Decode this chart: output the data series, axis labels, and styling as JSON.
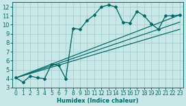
{
  "xlabel": "Humidex (Indice chaleur)",
  "xlim": [
    -0.5,
    23.5
  ],
  "ylim": [
    3,
    12.5
  ],
  "xticks": [
    0,
    1,
    2,
    3,
    4,
    5,
    6,
    7,
    8,
    9,
    10,
    11,
    12,
    13,
    14,
    15,
    16,
    17,
    18,
    19,
    20,
    21,
    22,
    23
  ],
  "yticks": [
    3,
    4,
    5,
    6,
    7,
    8,
    9,
    10,
    11,
    12
  ],
  "background_color": "#c8e8e8",
  "grid_color": "#a8cccc",
  "line_color": "#006868",
  "series_dotted": {
    "x": [
      0,
      1,
      2,
      3,
      4,
      5,
      6,
      7,
      8,
      9,
      10,
      11,
      12,
      13,
      14,
      15,
      16,
      17,
      18,
      19,
      20,
      21,
      22,
      23
    ],
    "y": [
      4.1,
      3.6,
      4.3,
      4.1,
      4.0,
      5.6,
      5.5,
      4.0,
      9.6,
      9.5,
      10.5,
      11.1,
      12.0,
      12.2,
      12.0,
      10.3,
      10.2,
      11.5,
      11.0,
      10.1,
      9.5,
      11.0,
      11.0,
      11.1
    ]
  },
  "series_solid1": {
    "x": [
      0,
      1,
      2,
      3,
      4,
      5,
      6,
      7,
      8,
      9,
      10,
      11,
      12,
      13,
      14,
      15,
      16,
      17,
      18,
      19,
      20,
      21,
      22,
      23
    ],
    "y": [
      4.1,
      3.6,
      4.3,
      4.1,
      4.0,
      5.6,
      5.5,
      4.0,
      9.6,
      9.5,
      10.5,
      11.1,
      12.0,
      12.2,
      12.0,
      10.3,
      10.2,
      11.5,
      11.0,
      10.1,
      9.5,
      11.0,
      11.0,
      11.1
    ]
  },
  "line1": {
    "x": [
      0,
      23
    ],
    "y": [
      4.1,
      11.1
    ]
  },
  "line2": {
    "x": [
      0,
      23
    ],
    "y": [
      4.1,
      10.3
    ]
  },
  "line3": {
    "x": [
      0,
      23
    ],
    "y": [
      4.1,
      9.5
    ]
  }
}
